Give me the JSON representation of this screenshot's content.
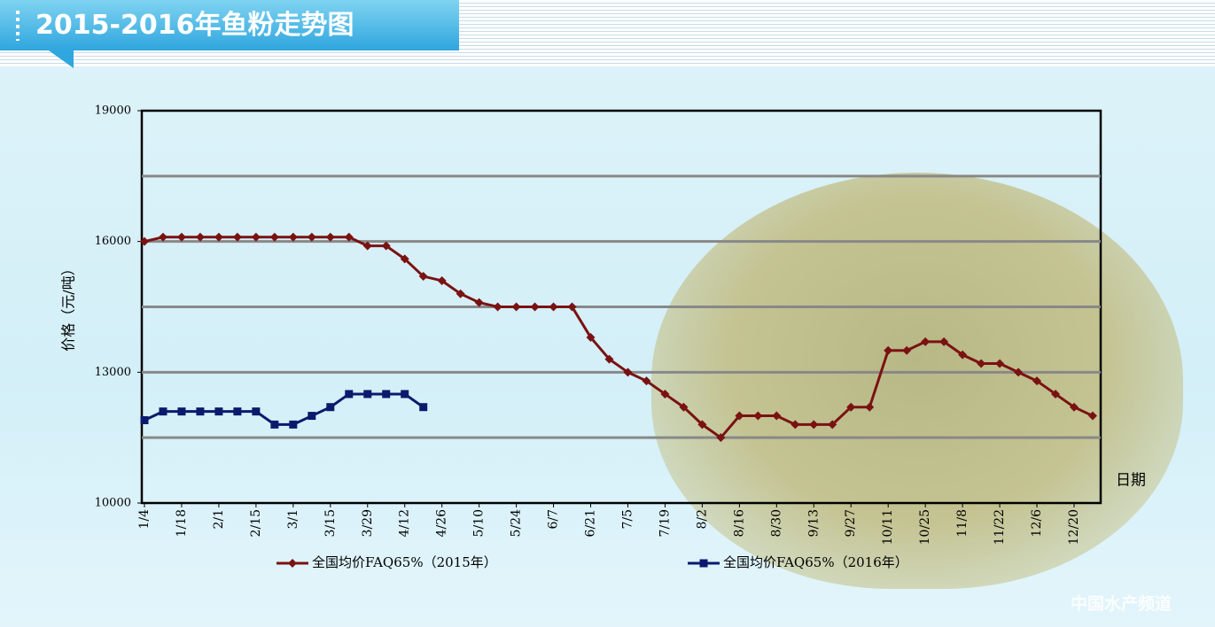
{
  "header": {
    "title": "2015-2016年鱼粉走势图"
  },
  "chart_data": {
    "type": "line",
    "y_label": "价格（元/吨）",
    "x_label": "日期",
    "categories": [
      "1/4",
      null,
      "1/18",
      null,
      "2/1",
      null,
      "2/15",
      null,
      "3/1",
      null,
      "3/15",
      null,
      "3/29",
      null,
      "4/12",
      null,
      "4/26",
      null,
      "5/10",
      null,
      "5/24",
      null,
      "6/7",
      null,
      "6/21",
      null,
      "7/5",
      null,
      "7/19",
      null,
      "8/2",
      null,
      "8/16",
      null,
      "8/30",
      null,
      "9/13",
      null,
      "9/27",
      null,
      "10/11",
      null,
      "10/25",
      null,
      "11/8",
      null,
      "11/22",
      null,
      "12/6",
      null,
      "12/20",
      null
    ],
    "series": [
      {
        "name": "全国均价FAQ65%（2015年）",
        "color": "#7a1212",
        "marker": "diamond",
        "values": [
          16000,
          16100,
          16100,
          16100,
          16100,
          16100,
          16100,
          16100,
          16100,
          16100,
          16100,
          16100,
          15900,
          15900,
          15600,
          15200,
          15100,
          14800,
          14600,
          14500,
          14500,
          14500,
          14500,
          14500,
          13800,
          13300,
          13000,
          12800,
          12500,
          12200,
          11800,
          11500,
          12000,
          12000,
          12000,
          11800,
          11800,
          11800,
          12200,
          12200,
          13500,
          13500,
          13700,
          13700,
          13400,
          13200,
          13200,
          13000,
          12800,
          12500,
          12200,
          12000
        ]
      },
      {
        "name": "全国均价FAQ65%（2016年）",
        "color": "#0b1a6c",
        "marker": "square",
        "values": [
          11900,
          12100,
          12100,
          12100,
          12100,
          12100,
          12100,
          11800,
          11800,
          12000,
          12200,
          12500,
          12500,
          12500,
          12500,
          12200,
          null,
          null,
          null,
          null,
          null,
          null,
          null,
          null,
          null,
          null,
          null,
          null,
          null,
          null,
          null,
          null,
          null,
          null,
          null,
          null,
          null,
          null,
          null,
          null,
          null,
          null,
          null,
          null,
          null,
          null,
          null,
          null,
          null,
          null,
          null,
          null
        ]
      }
    ],
    "ylim": [
      10000,
      19000
    ],
    "yticks": [
      10000,
      13000,
      16000,
      19000
    ],
    "gridlines": [
      11500,
      13000,
      14500,
      16000,
      17500
    ],
    "legend": "bottom"
  },
  "watermark": "中国水产频道"
}
